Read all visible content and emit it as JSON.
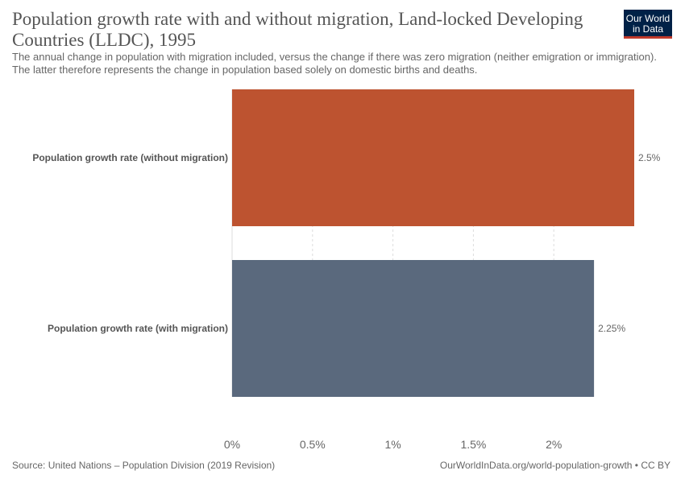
{
  "header": {
    "title": "Population growth rate with and without migration, Land-locked Developing Countries (LLDC), 1995",
    "subtitle": "The annual change in population with migration included, versus the change if there was zero migration (neither emigration or immigration). The latter therefore represents the change in population based solely on domestic births and deaths.",
    "logo_text": "Our World in Data"
  },
  "footer": {
    "source": "Source: United Nations – Population Division (2019 Revision)",
    "credit": "OurWorldInData.org/world-population-growth • CC BY"
  },
  "colors": {
    "without_migration": "#bd5330",
    "with_migration": "#5a697d",
    "logo_bg": "#002147",
    "logo_accent": "#c0392b"
  },
  "chart_data": {
    "type": "bar",
    "orientation": "horizontal",
    "categories": [
      "Population growth rate (without migration)",
      "Population growth rate (with migration)"
    ],
    "values": [
      2.5,
      2.25
    ],
    "value_labels": [
      "2.5%",
      "2.25%"
    ],
    "xlim": [
      0,
      2.5
    ],
    "xticks": [
      0,
      0.5,
      1,
      1.5,
      2
    ],
    "xtick_labels": [
      "0%",
      "0.5%",
      "1%",
      "1.5%",
      "2%"
    ],
    "grid": true
  }
}
